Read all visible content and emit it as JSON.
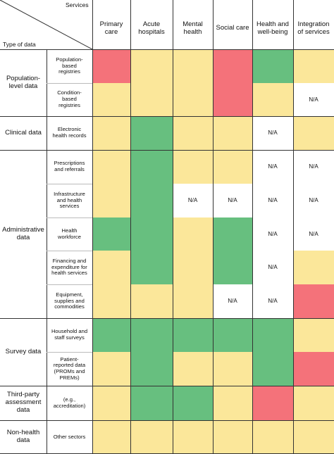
{
  "corner": {
    "services_label": "Services",
    "type_label": "Type of data"
  },
  "services": [
    "Primary care",
    "Acute hospitals",
    "Mental health",
    "Social care",
    "Health and well-being",
    "Integration of services"
  ],
  "colors": {
    "R": "#f4727a",
    "G": "#67bf7f",
    "Y": "#fbe79a",
    "N": "#ffffff"
  },
  "na_text": "N/A",
  "categories": [
    {
      "label": "Population-level data",
      "rows": [
        0,
        1
      ]
    },
    {
      "label": "Clinical data",
      "rows": [
        2,
        2
      ]
    },
    {
      "label": "Administrative data",
      "rows": [
        3,
        7
      ]
    },
    {
      "label": "Survey data",
      "rows": [
        8,
        9
      ]
    },
    {
      "label": "Third-party assessment data",
      "rows": [
        10,
        10
      ]
    },
    {
      "label": "Non-health data",
      "rows": [
        11,
        11
      ]
    }
  ],
  "rows": [
    {
      "label": "Population-based registries",
      "cells": [
        "R",
        "Y",
        "Y",
        "R",
        "G",
        "Y"
      ]
    },
    {
      "label": "Condition-based registries",
      "cells": [
        "Y",
        "Y",
        "Y",
        "R",
        "Y",
        "N"
      ]
    },
    {
      "label": "Electronic health records",
      "cells": [
        "Y",
        "G",
        "Y",
        "Y",
        "N",
        "Y"
      ]
    },
    {
      "label": "Prescriptions and referrals",
      "cells": [
        "Y",
        "G",
        "Y",
        "Y",
        "N",
        "N"
      ]
    },
    {
      "label": "Infrastructure and health services",
      "cells": [
        "Y",
        "G",
        "N",
        "N",
        "N",
        "N"
      ]
    },
    {
      "label": "Health workforce",
      "cells": [
        "G",
        "G",
        "Y",
        "G",
        "N",
        "N"
      ]
    },
    {
      "label": "Financing and expenditure for health services",
      "cells": [
        "Y",
        "G",
        "Y",
        "G",
        "N",
        "Y"
      ]
    },
    {
      "label": "Equipment, supplies and commodities",
      "cells": [
        "Y",
        "Y",
        "Y",
        "N",
        "N",
        "R"
      ]
    },
    {
      "label": "Household and staff surveys",
      "cells": [
        "G",
        "G",
        "G",
        "G",
        "G",
        "Y"
      ]
    },
    {
      "label": "Patient-reported data (PROMs and PREMs)",
      "cells": [
        "Y",
        "G",
        "Y",
        "Y",
        "G",
        "R"
      ]
    },
    {
      "label": "(e.g., accreditation)",
      "cells": [
        "Y",
        "G",
        "G",
        "Y",
        "R",
        "Y"
      ]
    },
    {
      "label": "Other sectors",
      "cells": [
        "Y",
        "Y",
        "Y",
        "Y",
        "Y",
        "Y"
      ]
    }
  ]
}
